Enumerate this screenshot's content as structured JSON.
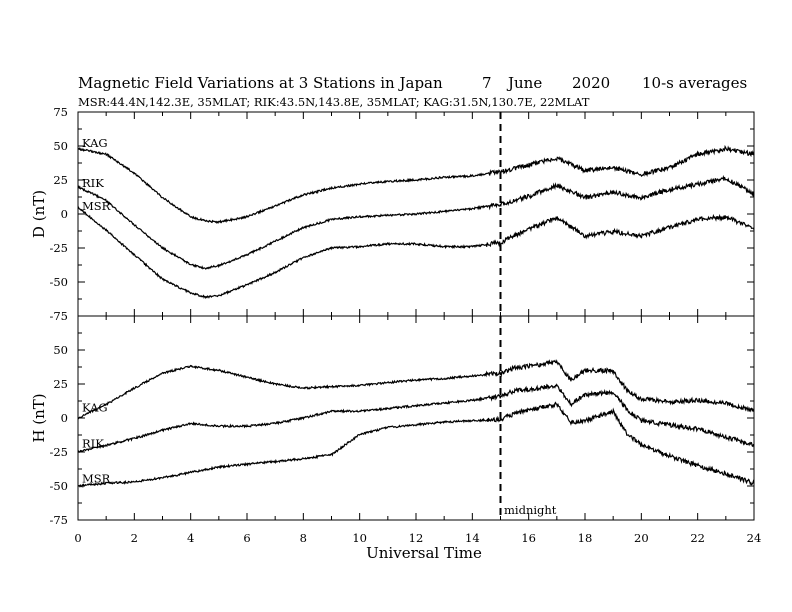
{
  "title": "Magnetic Field Variations at 3 Stations in Japan",
  "date": {
    "day": "7",
    "month": "June",
    "year": "2020"
  },
  "averaging": "10-s averages",
  "stations_info": "MSR:44.4N,142.3E, 35MLAT;  RIK:43.5N,143.8E, 35MLAT;  KAG:31.5N,130.7E, 22MLAT",
  "midnight_label": "midnight",
  "chart_data": [
    {
      "type": "line",
      "panel": "top",
      "ylabel": "D (nT)",
      "xlabel": "",
      "xlim": [
        0,
        24
      ],
      "ylim": [
        -75,
        75
      ],
      "yticks": [
        75,
        50,
        25,
        0,
        -25,
        -50,
        -75
      ],
      "xticks": [
        0,
        2,
        4,
        6,
        8,
        10,
        12,
        14,
        16,
        18,
        20,
        22,
        24
      ],
      "vline_x": 15,
      "x": [
        0,
        1,
        2,
        3,
        4,
        4.5,
        5,
        6,
        7,
        8,
        9,
        10,
        11,
        12,
        13,
        14,
        15,
        16,
        17,
        18,
        19,
        20,
        21,
        22,
        23,
        24
      ],
      "series": [
        {
          "name": "KAG",
          "values": [
            48,
            44,
            30,
            12,
            -2,
            -5,
            -6,
            -2,
            6,
            14,
            19,
            22,
            24,
            25,
            27,
            28,
            31,
            36,
            41,
            32,
            34,
            29,
            34,
            44,
            48,
            44
          ]
        },
        {
          "name": "RIK",
          "values": [
            20,
            10,
            -8,
            -25,
            -37,
            -40,
            -38,
            -30,
            -20,
            -10,
            -4,
            -2,
            -1,
            0,
            2,
            4,
            7,
            13,
            21,
            12,
            16,
            12,
            18,
            22,
            26,
            15
          ]
        },
        {
          "name": "MSR",
          "values": [
            5,
            -12,
            -30,
            -48,
            -58,
            -61,
            -60,
            -52,
            -43,
            -32,
            -25,
            -24,
            -22,
            -22,
            -24,
            -24,
            -21,
            -11,
            -3,
            -16,
            -13,
            -16,
            -10,
            -4,
            -2,
            -11
          ]
        }
      ]
    },
    {
      "type": "line",
      "panel": "bottom",
      "ylabel": "H (nT)",
      "xlabel": "Universal Time",
      "xlim": [
        0,
        24
      ],
      "ylim": [
        -75,
        75
      ],
      "yticks": [
        50,
        25,
        0,
        -25,
        -50,
        -75
      ],
      "xticks": [
        0,
        2,
        4,
        6,
        8,
        10,
        12,
        14,
        16,
        18,
        20,
        22,
        24
      ],
      "vline_x": 15,
      "x": [
        0,
        1,
        2,
        3,
        4,
        5,
        6,
        7,
        8,
        9,
        10,
        11,
        12,
        13,
        14,
        15,
        15.5,
        16,
        17,
        17.5,
        18,
        19,
        19.5,
        20,
        21,
        22,
        23,
        24
      ],
      "series": [
        {
          "name": "KAG",
          "values": [
            0,
            10,
            22,
            33,
            38,
            35,
            30,
            25,
            22,
            23,
            24,
            26,
            28,
            29,
            31,
            33,
            37,
            38,
            41,
            28,
            35,
            35,
            20,
            14,
            12,
            13,
            11,
            5
          ]
        },
        {
          "name": "RIK",
          "values": [
            -25,
            -20,
            -15,
            -9,
            -4,
            -6,
            -6,
            -4,
            0,
            5,
            5,
            7,
            9,
            11,
            13,
            16,
            20,
            21,
            24,
            10,
            17,
            19,
            6,
            -2,
            -5,
            -8,
            -14,
            -20
          ]
        },
        {
          "name": "MSR",
          "values": [
            -50,
            -48,
            -47,
            -44,
            -40,
            -36,
            -34,
            -32,
            -30,
            -27,
            -12,
            -7,
            -5,
            -3,
            -2,
            -1,
            3,
            6,
            10,
            -3,
            -2,
            5,
            -12,
            -20,
            -28,
            -35,
            -41,
            -48
          ]
        }
      ]
    }
  ]
}
